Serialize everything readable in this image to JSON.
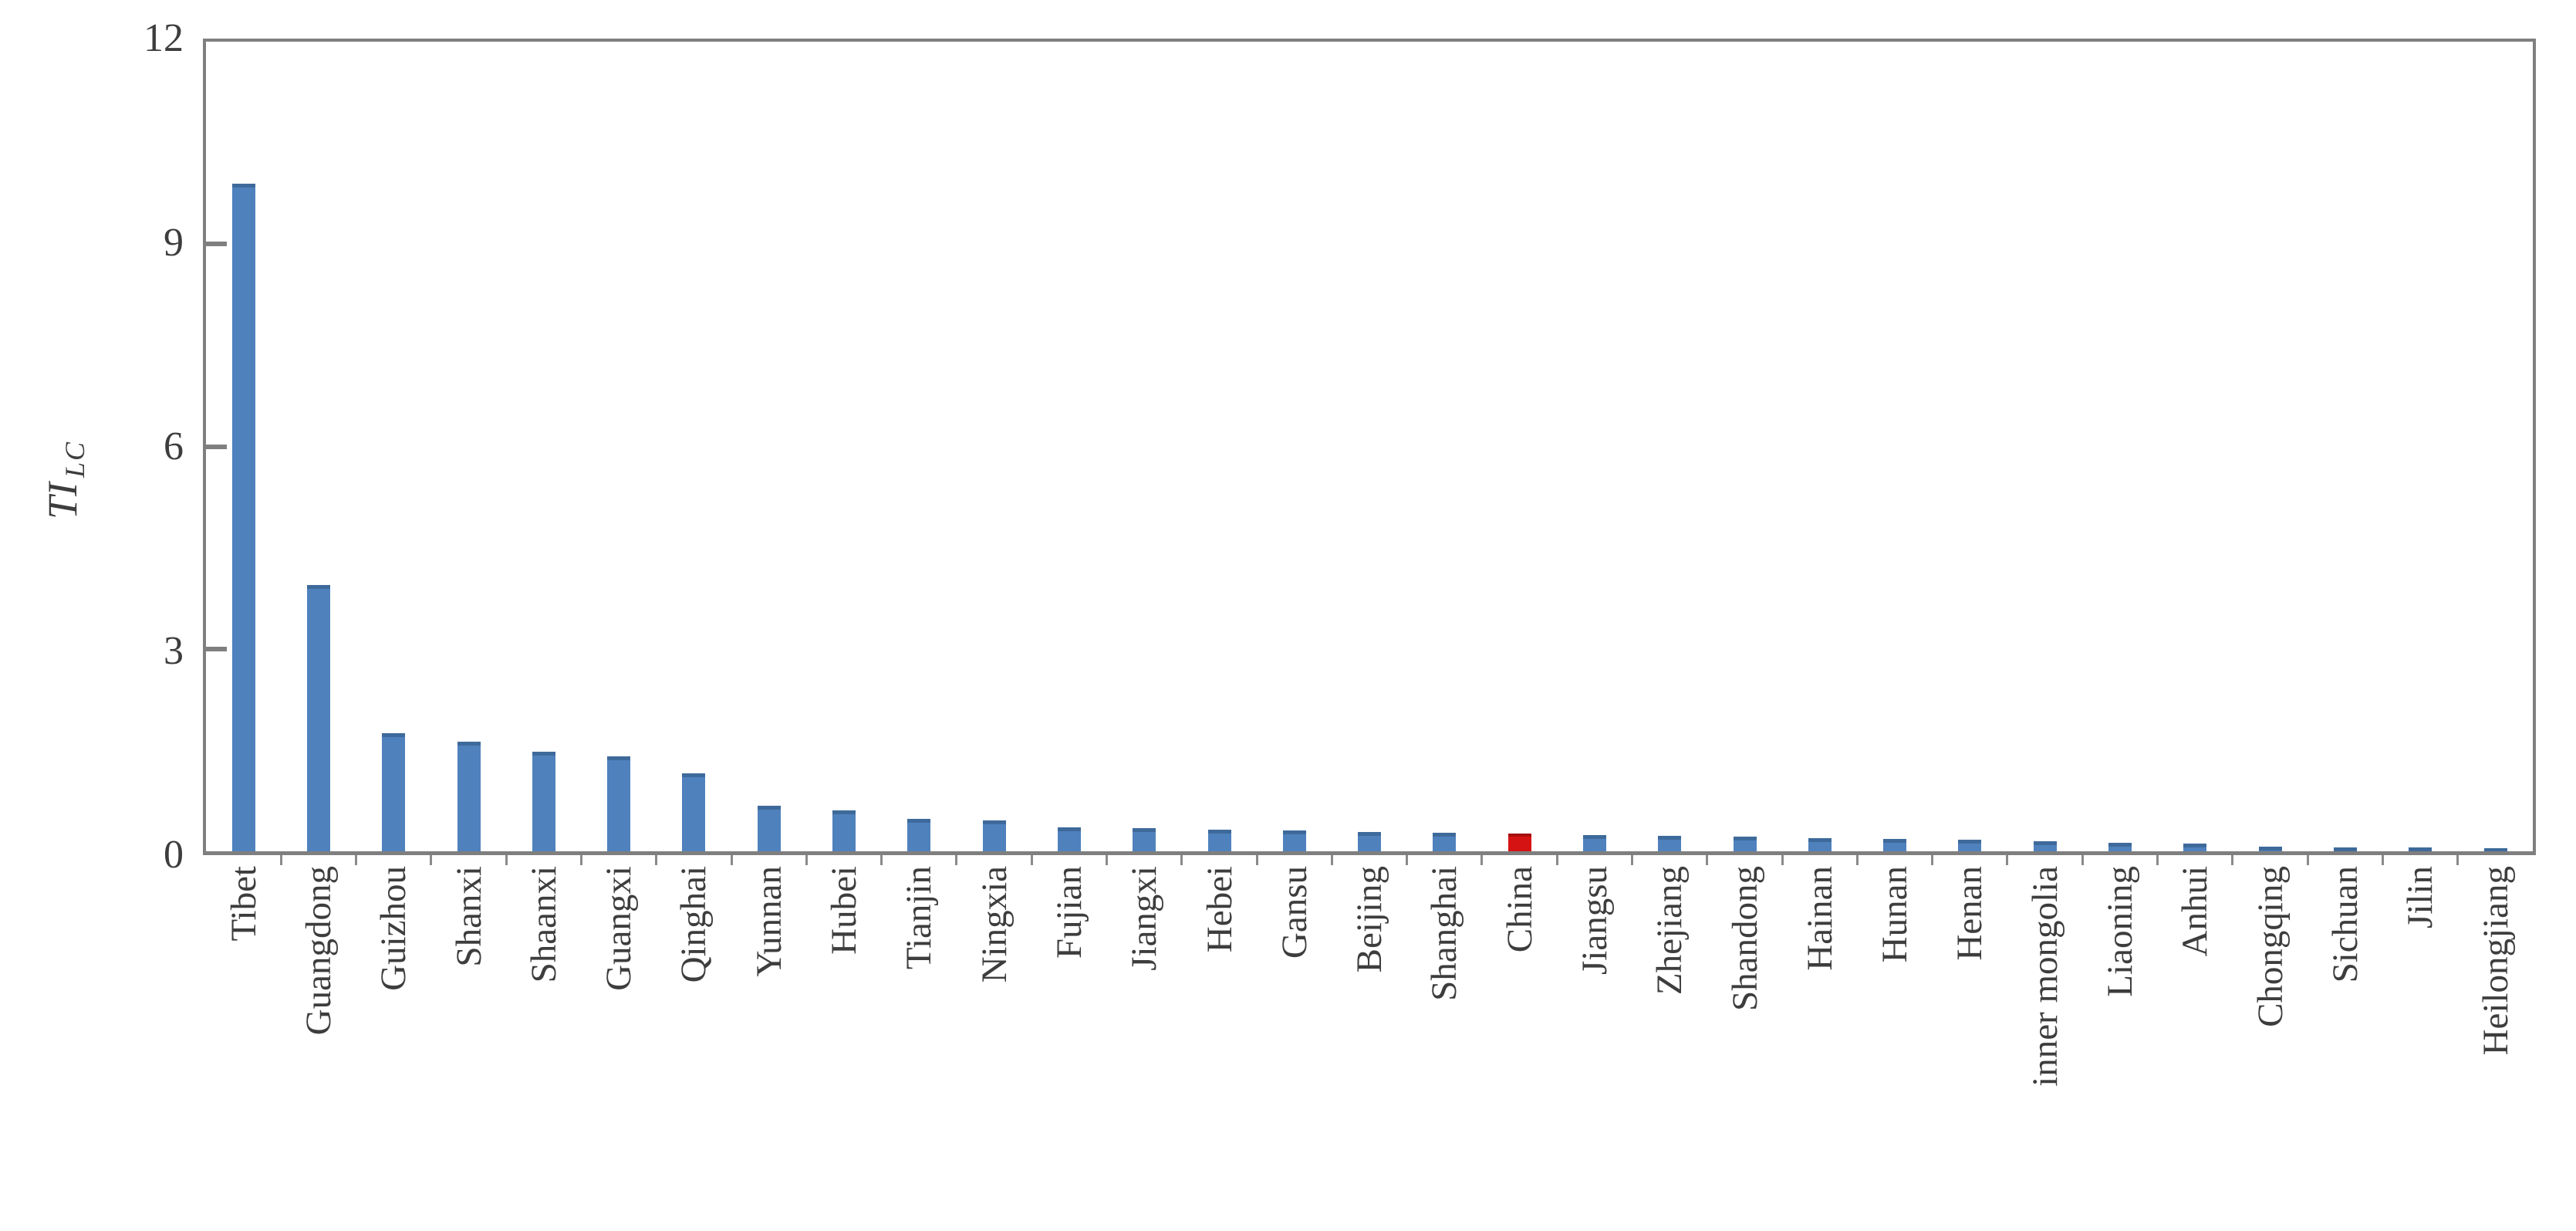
{
  "chart_data": {
    "type": "bar",
    "title": "",
    "ylabel_main": "TI",
    "ylabel_sub": "LC",
    "xlabel": "",
    "ylim": [
      0,
      12
    ],
    "yticks": [
      0,
      3,
      6,
      9,
      12
    ],
    "grid": false,
    "legend_position": "none",
    "bar_color": "#4f81bd",
    "highlight_color": "#d61313",
    "axis_color": "#7f7f7f",
    "text_color": "#3d3d3d",
    "highlight_category": "China",
    "categories": [
      "Tibet",
      "Guangdong",
      "Guizhou",
      "Shanxi",
      "Shaanxi",
      "Guangxi",
      "Qinghai",
      "Yunnan",
      "Hubei",
      "Tianjin",
      "Ningxia",
      "Fujian",
      "Jiangxi",
      "Hebei",
      "Gansu",
      "Beijing",
      "Shanghai",
      "China",
      "Jiangsu",
      "Zhejiang",
      "Shandong",
      "Hainan",
      "Hunan",
      "Henan",
      "inner mongolia",
      "Liaoning",
      "Anhui",
      "Chongqing",
      "Sichuan",
      "Jilin",
      "Heilongjiang"
    ],
    "values": [
      9.9,
      3.95,
      1.75,
      1.62,
      1.47,
      1.41,
      1.16,
      0.67,
      0.61,
      0.48,
      0.46,
      0.36,
      0.34,
      0.32,
      0.31,
      0.29,
      0.28,
      0.26,
      0.24,
      0.23,
      0.22,
      0.2,
      0.18,
      0.17,
      0.15,
      0.13,
      0.12,
      0.07,
      0.06,
      0.06,
      0.05
    ]
  }
}
